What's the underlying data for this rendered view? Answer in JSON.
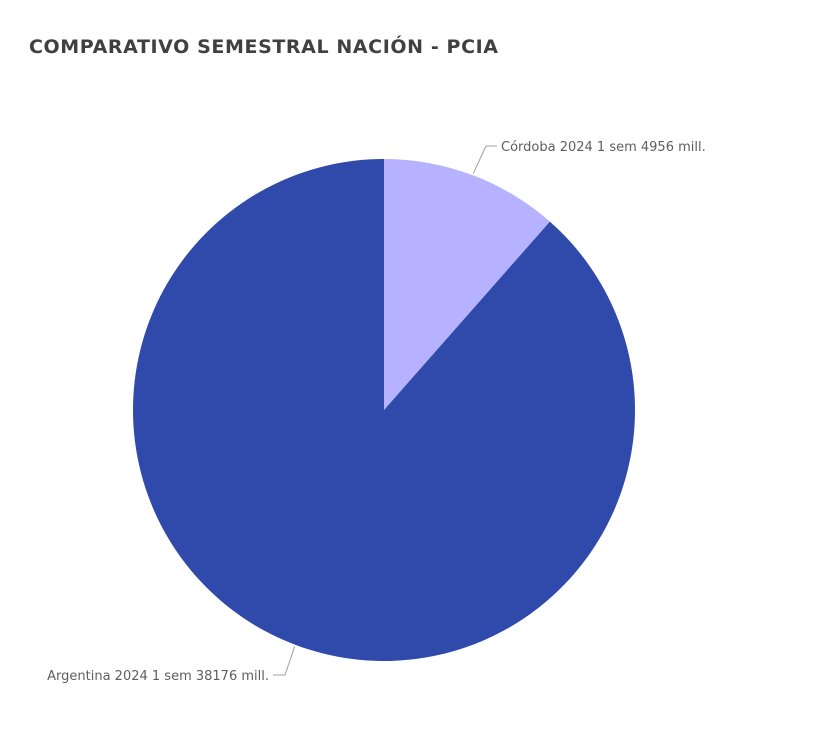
{
  "title": "COMPARATIVO SEMESTRAL NACIÓN - PCIA",
  "chart_data": {
    "type": "pie",
    "title": "COMPARATIVO SEMESTRAL NACIÓN - PCIA",
    "slices": [
      {
        "label": "Córdoba 2024 1 sem 4956 mill.",
        "value": 4956,
        "color": "#b6b2ff"
      },
      {
        "label": "Argentina 2024 1 sem 38176 mill.",
        "value": 38176,
        "color": "#2f4aab"
      }
    ],
    "legend": "none",
    "data_labels": "outside"
  }
}
